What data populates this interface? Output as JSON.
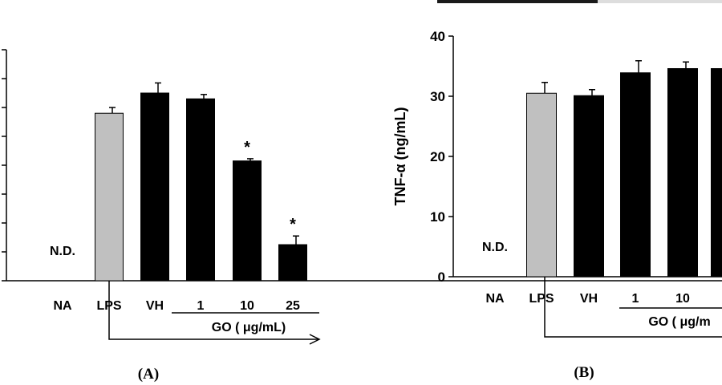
{
  "chart_data": [
    {
      "type": "bar",
      "panel_label": "(A)",
      "ylabel": "",
      "ylim": [
        0,
        16
      ],
      "yticks": [
        "0",
        "2",
        "4",
        "6",
        "8",
        "10",
        "12",
        "14",
        "16"
      ],
      "categories": [
        "NA",
        "LPS",
        "VH",
        "1",
        "10",
        "25"
      ],
      "values": [
        0,
        11.6,
        13.0,
        12.6,
        8.3,
        2.5
      ],
      "errors": [
        0,
        0.4,
        0.7,
        0.3,
        0.15,
        0.6
      ],
      "bar_colors": [
        "#ffffff",
        "#c0c0c0",
        "#000000",
        "#000000",
        "#000000",
        "#000000"
      ],
      "significance": [
        "",
        "",
        "",
        "",
        "*",
        "*"
      ],
      "nd_label": "N.D.",
      "group_label": "GO ( μg/mL)",
      "grid": false
    },
    {
      "type": "bar",
      "panel_label": "(B)",
      "ylabel": "TNF-α (ng/mL)",
      "ylim": [
        0,
        40
      ],
      "yticks": [
        "0",
        "10",
        "20",
        "30",
        "40"
      ],
      "categories": [
        "NA",
        "LPS",
        "VH",
        "1",
        "10",
        ""
      ],
      "values": [
        0,
        30.5,
        30.1,
        33.9,
        34.6,
        34.6
      ],
      "errors": [
        0,
        1.8,
        1.0,
        2.0,
        1.1,
        0
      ],
      "bar_colors": [
        "#ffffff",
        "#c0c0c0",
        "#000000",
        "#000000",
        "#000000",
        "#000000"
      ],
      "significance": [
        "",
        "",
        "",
        "",
        "",
        ""
      ],
      "nd_label": "N.D.",
      "group_label": "GO ( μg/m",
      "grid": false
    }
  ]
}
